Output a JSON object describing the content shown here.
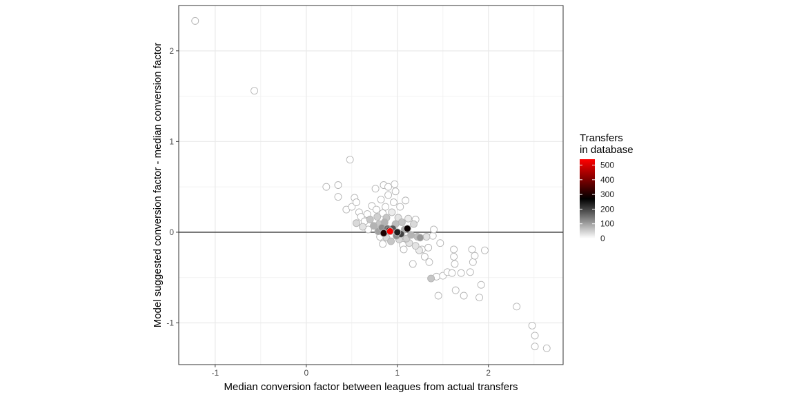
{
  "chart_data": {
    "type": "scatter",
    "xlabel": "Median conversion factor between leagues from actual transfers",
    "ylabel": "Model suggested conversion factor - median conversion factor",
    "xlim": [
      -1.4,
      2.82
    ],
    "ylim": [
      -1.46,
      2.5
    ],
    "x_ticks": [
      -1,
      0,
      1,
      2
    ],
    "y_ticks": [
      -1,
      0,
      1,
      2
    ],
    "x_tick_labels": [
      "-1",
      "0",
      "1",
      "2"
    ],
    "y_tick_labels": [
      "-1",
      "0",
      "1",
      "2"
    ],
    "hline": 0,
    "grid": true,
    "legend": {
      "title_lines": [
        "Transfers",
        "in database"
      ],
      "placement": "right",
      "ticks": [
        0,
        100,
        200,
        300,
        400,
        500
      ],
      "tick_labels": [
        "0",
        "100",
        "200",
        "300",
        "400",
        "500"
      ],
      "range": [
        0,
        540
      ],
      "colors": [
        "#ffffff",
        "#000000",
        "#ff0000"
      ]
    },
    "points": [
      {
        "x": -1.22,
        "y": 2.33,
        "n": 0
      },
      {
        "x": -0.57,
        "y": 1.56,
        "n": 0
      },
      {
        "x": 0.48,
        "y": 0.8,
        "n": 0
      },
      {
        "x": 0.22,
        "y": 0.5,
        "n": 0
      },
      {
        "x": 0.35,
        "y": 0.52,
        "n": 0
      },
      {
        "x": 0.35,
        "y": 0.39,
        "n": 0
      },
      {
        "x": 0.44,
        "y": 0.25,
        "n": 0
      },
      {
        "x": 0.5,
        "y": 0.28,
        "n": 0
      },
      {
        "x": 0.53,
        "y": 0.38,
        "n": 0
      },
      {
        "x": 0.55,
        "y": 0.33,
        "n": 0
      },
      {
        "x": 0.58,
        "y": 0.22,
        "n": 0
      },
      {
        "x": 0.6,
        "y": 0.17,
        "n": 0
      },
      {
        "x": 0.55,
        "y": 0.1,
        "n": 40
      },
      {
        "x": 0.62,
        "y": 0.06,
        "n": 30
      },
      {
        "x": 0.64,
        "y": 0.12,
        "n": 0
      },
      {
        "x": 0.67,
        "y": 0.2,
        "n": 0
      },
      {
        "x": 0.68,
        "y": 0.03,
        "n": 0
      },
      {
        "x": 0.7,
        "y": 0.14,
        "n": 60
      },
      {
        "x": 0.72,
        "y": 0.29,
        "n": 0
      },
      {
        "x": 0.74,
        "y": 0.07,
        "n": 80
      },
      {
        "x": 0.76,
        "y": 0.48,
        "n": 0
      },
      {
        "x": 0.77,
        "y": 0.25,
        "n": 0
      },
      {
        "x": 0.78,
        "y": 0.17,
        "n": 50
      },
      {
        "x": 0.79,
        "y": 0.01,
        "n": 100
      },
      {
        "x": 0.8,
        "y": 0.09,
        "n": 60
      },
      {
        "x": 0.81,
        "y": -0.05,
        "n": 0
      },
      {
        "x": 0.82,
        "y": 0.36,
        "n": 0
      },
      {
        "x": 0.83,
        "y": 0.05,
        "n": 120
      },
      {
        "x": 0.84,
        "y": -0.13,
        "n": 0
      },
      {
        "x": 0.84,
        "y": 0.21,
        "n": 0
      },
      {
        "x": 0.85,
        "y": 0.52,
        "n": 0
      },
      {
        "x": 0.85,
        "y": -0.01,
        "n": 300
      },
      {
        "x": 0.86,
        "y": 0.11,
        "n": 80
      },
      {
        "x": 0.87,
        "y": 0.28,
        "n": 0
      },
      {
        "x": 0.88,
        "y": -0.06,
        "n": 40
      },
      {
        "x": 0.88,
        "y": 0.16,
        "n": 60
      },
      {
        "x": 0.89,
        "y": 0.04,
        "n": 150
      },
      {
        "x": 0.9,
        "y": 0.41,
        "n": 0
      },
      {
        "x": 0.9,
        "y": 0.5,
        "n": 0
      },
      {
        "x": 0.91,
        "y": 0.02,
        "n": 290
      },
      {
        "x": 0.92,
        "y": 0.01,
        "n": 530
      },
      {
        "x": 0.93,
        "y": -0.1,
        "n": 60
      },
      {
        "x": 0.94,
        "y": 0.22,
        "n": 20
      },
      {
        "x": 0.95,
        "y": 0.04,
        "n": 180
      },
      {
        "x": 0.96,
        "y": 0.33,
        "n": 0
      },
      {
        "x": 0.97,
        "y": 0.53,
        "n": 0
      },
      {
        "x": 0.98,
        "y": 0.45,
        "n": 0
      },
      {
        "x": 0.98,
        "y": 0.09,
        "n": 70
      },
      {
        "x": 0.99,
        "y": -0.04,
        "n": 120
      },
      {
        "x": 1.0,
        "y": 0.0,
        "n": 240
      },
      {
        "x": 1.01,
        "y": 0.16,
        "n": 30
      },
      {
        "x": 1.02,
        "y": -0.08,
        "n": 40
      },
      {
        "x": 1.03,
        "y": 0.28,
        "n": 0
      },
      {
        "x": 1.04,
        "y": -0.02,
        "n": 200
      },
      {
        "x": 1.05,
        "y": 0.11,
        "n": 60
      },
      {
        "x": 1.06,
        "y": -0.14,
        "n": 0
      },
      {
        "x": 1.07,
        "y": -0.19,
        "n": 0
      },
      {
        "x": 1.08,
        "y": 0.03,
        "n": 90
      },
      {
        "x": 1.09,
        "y": 0.35,
        "n": 0
      },
      {
        "x": 1.1,
        "y": -0.07,
        "n": 50
      },
      {
        "x": 1.11,
        "y": 0.04,
        "n": 280
      },
      {
        "x": 1.12,
        "y": 0.15,
        "n": 20
      },
      {
        "x": 1.13,
        "y": -0.12,
        "n": 30
      },
      {
        "x": 1.15,
        "y": -0.03,
        "n": 80
      },
      {
        "x": 1.17,
        "y": -0.35,
        "n": 0
      },
      {
        "x": 1.18,
        "y": 0.09,
        "n": 40
      },
      {
        "x": 1.2,
        "y": -0.15,
        "n": 30
      },
      {
        "x": 1.2,
        "y": 0.14,
        "n": 0
      },
      {
        "x": 1.22,
        "y": -0.05,
        "n": 70
      },
      {
        "x": 1.24,
        "y": -0.2,
        "n": 20
      },
      {
        "x": 1.25,
        "y": -0.06,
        "n": 110
      },
      {
        "x": 1.27,
        "y": -0.19,
        "n": 0
      },
      {
        "x": 1.3,
        "y": -0.27,
        "n": 0
      },
      {
        "x": 1.32,
        "y": -0.05,
        "n": 30
      },
      {
        "x": 1.34,
        "y": -0.17,
        "n": 0
      },
      {
        "x": 1.35,
        "y": -0.33,
        "n": 0
      },
      {
        "x": 1.37,
        "y": -0.51,
        "n": 60
      },
      {
        "x": 1.39,
        "y": -0.04,
        "n": 0
      },
      {
        "x": 1.4,
        "y": 0.03,
        "n": 0
      },
      {
        "x": 1.43,
        "y": -0.49,
        "n": 0
      },
      {
        "x": 1.45,
        "y": -0.7,
        "n": 0
      },
      {
        "x": 1.47,
        "y": -0.12,
        "n": 0
      },
      {
        "x": 1.5,
        "y": -0.48,
        "n": 0
      },
      {
        "x": 1.55,
        "y": -0.44,
        "n": 0
      },
      {
        "x": 1.6,
        "y": -0.45,
        "n": 0
      },
      {
        "x": 1.62,
        "y": -0.19,
        "n": 0
      },
      {
        "x": 1.62,
        "y": -0.27,
        "n": 0
      },
      {
        "x": 1.63,
        "y": -0.35,
        "n": 0
      },
      {
        "x": 1.64,
        "y": -0.64,
        "n": 0
      },
      {
        "x": 1.7,
        "y": -0.45,
        "n": 0
      },
      {
        "x": 1.73,
        "y": -0.7,
        "n": 0
      },
      {
        "x": 1.8,
        "y": -0.44,
        "n": 0
      },
      {
        "x": 1.82,
        "y": -0.19,
        "n": 0
      },
      {
        "x": 1.83,
        "y": -0.33,
        "n": 0
      },
      {
        "x": 1.85,
        "y": -0.26,
        "n": 0
      },
      {
        "x": 1.9,
        "y": -0.72,
        "n": 0
      },
      {
        "x": 1.92,
        "y": -0.58,
        "n": 0
      },
      {
        "x": 1.96,
        "y": -0.2,
        "n": 0
      },
      {
        "x": 2.31,
        "y": -0.82,
        "n": 0
      },
      {
        "x": 2.48,
        "y": -1.03,
        "n": 0
      },
      {
        "x": 2.51,
        "y": -1.14,
        "n": 0
      },
      {
        "x": 2.51,
        "y": -1.26,
        "n": 0
      },
      {
        "x": 2.64,
        "y": -1.28,
        "n": 0
      }
    ]
  }
}
